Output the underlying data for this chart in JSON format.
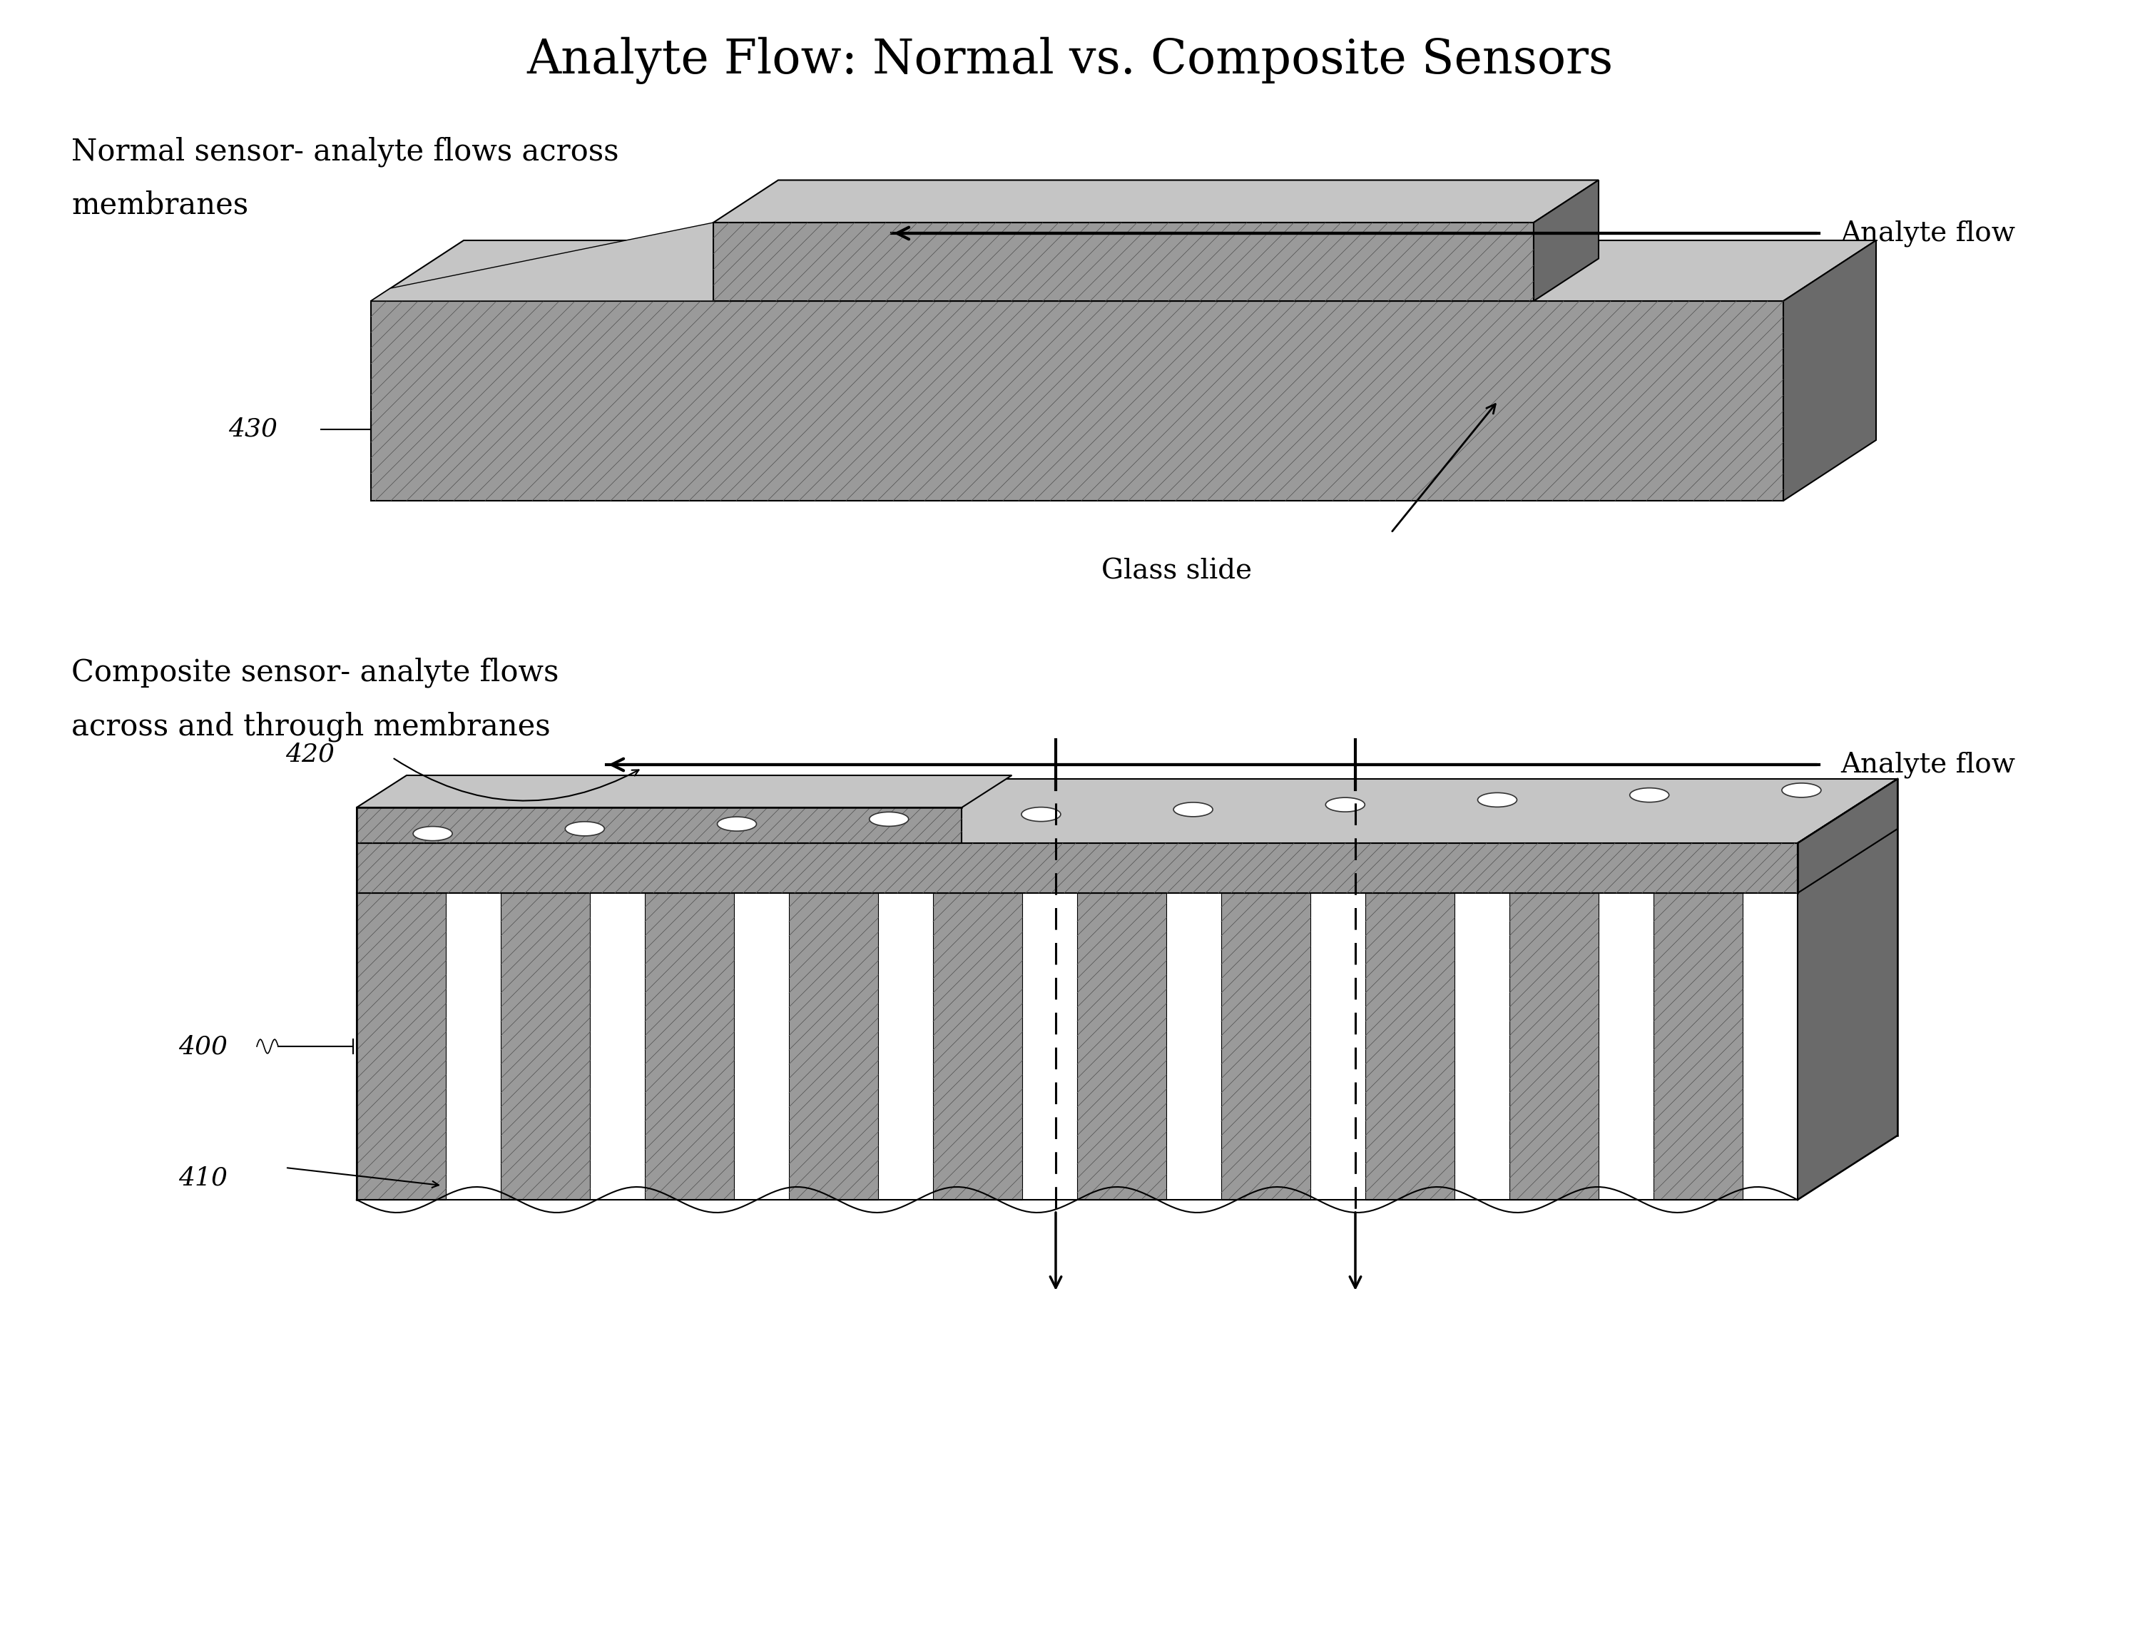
{
  "title": "Analyte Flow: Normal vs. Composite Sensors",
  "title_fontsize": 48,
  "bg_color": "#ffffff",
  "text_color": "#000000",
  "label_normal_line1": "Normal sensor- analyte flows across",
  "label_normal_line2": "membranes",
  "label_composite_line1": "Composite sensor- analyte flows",
  "label_composite_line2": "across and through membranes",
  "analyte_flow_label": "Analyte flow",
  "glass_slide_label": "Glass slide",
  "label_430": "430",
  "label_420": "420",
  "label_400": "400",
  "label_410": "410",
  "font_label": 30,
  "font_annot": 28,
  "font_number": 26,
  "gray_main": "#999999",
  "gray_top": "#bbbbbb",
  "gray_side": "#666666",
  "gray_dark": "#444444",
  "white_gap": "#ffffff",
  "hatch_color": "#555555"
}
